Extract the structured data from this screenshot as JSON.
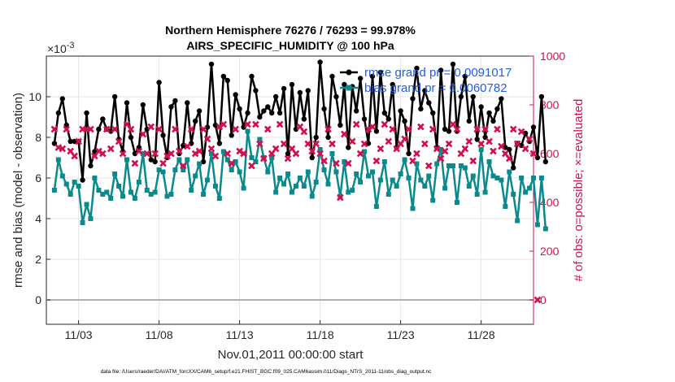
{
  "chart_data": {
    "type": "line",
    "title": "Northern Hemisphere 76276 / 76293 = 99.978%",
    "subtitle": "AIRS_SPECIFIC_HUMIDITY @ 100 hPa",
    "xlabel": "Nov.01,2011 00:00:00 start",
    "ylabel": "rmse and bias (model - observation)",
    "ylabel_right": "# of obs: o=possible; ×=evaluated",
    "y_exponent": "×10",
    "y_exponent_power": "-3",
    "xlim": [
      1.0,
      31.25
    ],
    "ylim": [
      -1.2,
      12.0
    ],
    "ylim_right": [
      -100,
      1000
    ],
    "x_ticks": [
      3,
      8,
      13,
      18,
      23,
      28
    ],
    "x_tick_labels": [
      "11/03",
      "11/08",
      "11/13",
      "11/18",
      "11/23",
      "11/28"
    ],
    "y_ticks": [
      0,
      2,
      4,
      6,
      8,
      10
    ],
    "y_tick_labels": [
      "0",
      "2",
      "4",
      "6",
      "8",
      "10"
    ],
    "y_ticks_right": [
      0,
      200,
      400,
      600,
      800,
      1000
    ],
    "y_tick_labels_right": [
      "0",
      "200",
      "400",
      "600",
      "800",
      "1000"
    ],
    "grid": true,
    "legend_position": "top-right",
    "series": [
      {
        "name": "rmse grand pr = 0.0091017",
        "axis": "left",
        "color": "#000000",
        "values": [
          7.7,
          9.2,
          9.9,
          8.6,
          7.8,
          7.8,
          7.8,
          5.9,
          9.2,
          6.6,
          7.3,
          8.4,
          8.9,
          8.4,
          8.3,
          10.0,
          7.9,
          7.3,
          9.7,
          8.0,
          7.2,
          7.5,
          9.6,
          8.4,
          6.9,
          6.8,
          10.7,
          8.1,
          7.0,
          9.5,
          9.8,
          7.2,
          7.6,
          9.7,
          7.7,
          8.8,
          9.3,
          6.8,
          8.5,
          11.6,
          8.6,
          7.7,
          11.0,
          10.8,
          8.1,
          10.1,
          9.4,
          8.5,
          9.2,
          11.0,
          10.3,
          9.0,
          9.3,
          9.5,
          9.2,
          10.0,
          9.2,
          10.4,
          7.2,
          10.6,
          8.4,
          10.2,
          8.9,
          10.3,
          7.0,
          8.0,
          11.7,
          9.4,
          8.0,
          11.0,
          10.0,
          8.6,
          10.6,
          7.5,
          10.5,
          9.3,
          10.9,
          8.9,
          7.7,
          11.0,
          8.3,
          11.2,
          9.2,
          8.9,
          10.6,
          7.5,
          9.3,
          8.8,
          7.2,
          9.9,
          11.4,
          9.4,
          10.3,
          9.7,
          9.2,
          7.5,
          11.3,
          8.4,
          8.3,
          11.6,
          8.3,
          10.0,
          11.0,
          8.8,
          10.0,
          7.9,
          9.5,
          8.0,
          9.2,
          8.8,
          9.4,
          9.9,
          7.5,
          7.4,
          6.5,
          7.7,
          7.6,
          8.2,
          7.8,
          8.5,
          7.0,
          10.0,
          6.8
        ],
        "x_start": 1.5,
        "x_step": 0.25
      },
      {
        "name": "bias grand pr = 0.0060782",
        "axis": "left",
        "color": "#0a8a8c",
        "values": [
          5.4,
          6.9,
          6.1,
          5.7,
          5.2,
          5.8,
          5.6,
          3.8,
          4.7,
          4.0,
          6.0,
          5.4,
          5.2,
          5.3,
          5.0,
          6.2,
          5.6,
          5.1,
          6.9,
          5.3,
          5.0,
          5.8,
          7.2,
          5.4,
          5.2,
          5.3,
          6.4,
          6.3,
          5.1,
          5.2,
          6.4,
          6.9,
          6.4,
          6.9,
          5.4,
          6.1,
          6.7,
          5.2,
          5.9,
          7.2,
          5.6,
          5.0,
          7.3,
          6.9,
          6.4,
          6.8,
          6.3,
          5.5,
          8.3,
          7.0,
          6.8,
          7.9,
          7.0,
          6.3,
          7.0,
          5.3,
          6.0,
          5.7,
          6.2,
          5.3,
          5.6,
          6.0,
          5.6,
          6.3,
          5.1,
          5.8,
          7.4,
          6.4,
          5.7,
          7.2,
          6.3,
          5.1,
          6.8,
          5.3,
          5.4,
          6.2,
          5.8,
          7.3,
          6.1,
          6.3,
          4.6,
          5.9,
          6.8,
          5.2,
          5.9,
          5.6,
          6.2,
          6.9,
          6.0,
          4.5,
          6.7,
          5.9,
          5.6,
          6.1,
          4.9,
          6.7,
          7.4,
          5.5,
          6.6,
          6.6,
          4.8,
          6.6,
          6.5,
          5.6,
          6.1,
          5.2,
          7.4,
          5.3,
          6.8,
          6.1,
          6.0,
          5.9,
          4.6,
          6.3,
          5.2,
          3.9,
          6.0,
          5.3,
          5.5,
          6.0,
          3.7,
          6.0,
          3.5
        ],
        "x_start": 1.5,
        "x_step": 0.25
      },
      {
        "name": "# of obs evaluated",
        "axis": "right",
        "color": "#d01050",
        "marker": "x",
        "values": [
          700,
          625,
          620,
          700,
          610,
          590,
          650,
          700,
          700,
          700,
          590,
          610,
          600,
          700,
          620,
          700,
          650,
          600,
          720,
          700,
          560,
          610,
          680,
          600,
          710,
          600,
          700,
          560,
          590,
          600,
          700,
          610,
          550,
          630,
          700,
          600,
          610,
          700,
          660,
          620,
          590,
          710,
          720,
          600,
          560,
          700,
          610,
          600,
          720,
          550,
          720,
          640,
          580,
          700,
          600,
          620,
          720,
          640,
          580,
          620,
          600,
          710,
          690,
          640,
          610,
          640,
          600,
          570,
          700,
          640,
          560,
          420,
          680,
          560,
          650,
          720,
          600,
          640,
          700,
          710,
          570,
          620,
          720,
          650,
          700,
          620,
          640,
          660,
          700,
          570,
          600,
          710,
          640,
          550,
          700,
          620,
          580,
          610,
          640,
          720,
          700,
          600,
          620,
          650,
          570,
          700,
          640,
          700,
          650,
          610,
          700,
          630,
          600,
          580,
          700,
          640,
          690,
          620,
          660,
          600,
          0
        ],
        "x_start": 1.5,
        "x_step": 0.25
      }
    ]
  },
  "footer": {
    "data_file": "data file: /Users/raeder/DAI/ATM_forcXX/CAM6_setup/f.e21.FHIST_BGC.f09_025.CAM6assim.011/Diags_NTrS_2011-11/obs_diag_output.nc"
  }
}
